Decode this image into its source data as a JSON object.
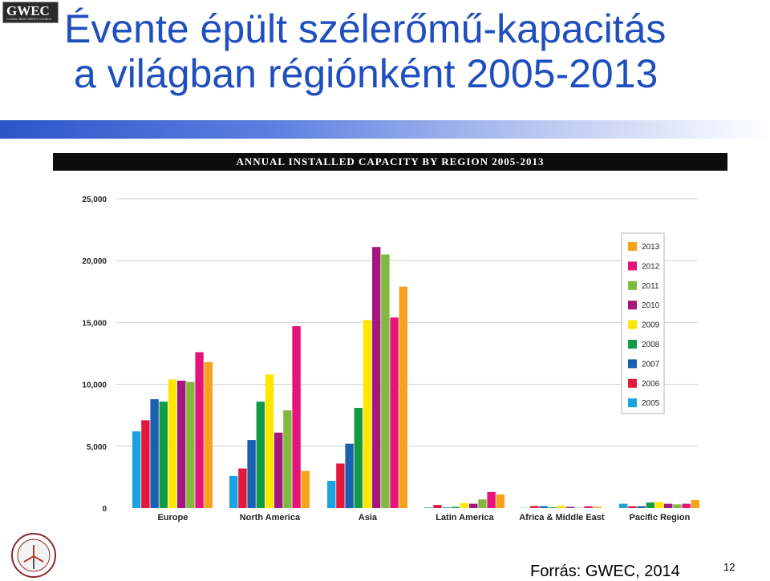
{
  "logo": {
    "text": "GWEC",
    "subtext": "GLOBAL WIND ENERGY COUNCIL"
  },
  "title": {
    "line1": "Évente épült szélerőmű-kapacitás",
    "line2": "a világban régiónként 2005-2013"
  },
  "source": "Forrás: GWEC, 2014",
  "page_number": "12",
  "colors": {
    "title": "#1f4fbf",
    "2005": "#1aa3e0",
    "2006": "#e3193b",
    "2007": "#1b5fb0",
    "2008": "#139a46",
    "2009": "#ffe600",
    "2010": "#a5177f",
    "2011": "#80b93f",
    "2012": "#e6137a",
    "2013": "#f7a21b"
  },
  "chart_data": {
    "type": "bar",
    "title": "ANNUAL INSTALLED CAPACITY BY REGION 2005-2013",
    "xlabel": "",
    "ylabel": "",
    "ylim": [
      0,
      25000
    ],
    "yticks": [
      0,
      5000,
      10000,
      15000,
      20000,
      25000
    ],
    "ytick_labels": [
      "0",
      "5,000",
      "10,000",
      "15,000",
      "20,000",
      "25,000"
    ],
    "grid": true,
    "legend_position": "right",
    "categories": [
      "Europe",
      "North America",
      "Asia",
      "Latin America",
      "Africa & Middle East",
      "Pacific Region"
    ],
    "series": [
      {
        "name": "2005",
        "values": [
          6200,
          2600,
          2200,
          50,
          20,
          350
        ]
      },
      {
        "name": "2006",
        "values": [
          7100,
          3200,
          3600,
          250,
          170,
          150
        ]
      },
      {
        "name": "2007",
        "values": [
          8800,
          5500,
          5200,
          50,
          150,
          150
        ]
      },
      {
        "name": "2008",
        "values": [
          8600,
          8600,
          8100,
          100,
          70,
          450
        ]
      },
      {
        "name": "2009",
        "values": [
          10400,
          10800,
          15200,
          400,
          200,
          500
        ]
      },
      {
        "name": "2010",
        "values": [
          10300,
          6100,
          21100,
          350,
          100,
          350
        ]
      },
      {
        "name": "2011",
        "values": [
          10200,
          7900,
          20500,
          700,
          30,
          300
        ]
      },
      {
        "name": "2012",
        "values": [
          12600,
          14700,
          15400,
          1300,
          150,
          350
        ]
      },
      {
        "name": "2013",
        "values": [
          11800,
          3000,
          17900,
          1100,
          100,
          650
        ]
      }
    ]
  }
}
